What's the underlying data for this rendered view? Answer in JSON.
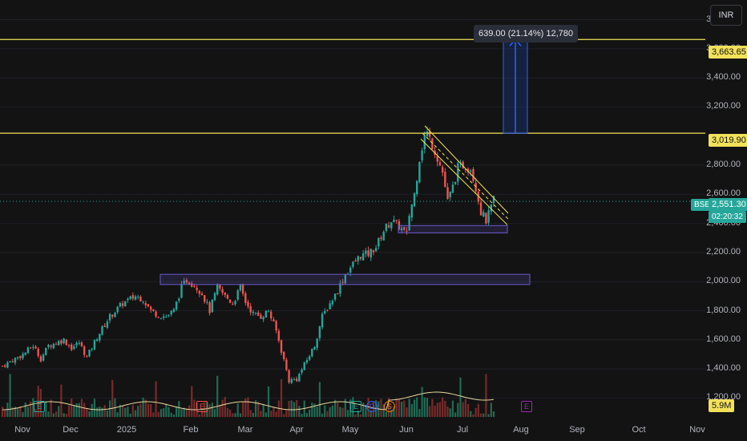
{
  "currency": "INR",
  "exchange_badge": "BSE",
  "price_badge": "2,551.30",
  "countdown": "02:20:32",
  "measure_label": "639.00 (21.14%) 12,780",
  "level_labels": [
    "3,663.65",
    "3,019.90"
  ],
  "volume_label": "5.9M",
  "events": [
    {
      "label": "E",
      "color": "#26a69a"
    },
    {
      "label": "E",
      "color": "#ef5350"
    },
    {
      "label": "E",
      "color": "#26a69a"
    },
    {
      "label": "D",
      "color": "#2962ff"
    },
    {
      "label": "S",
      "color": "#f57c00"
    },
    {
      "label": "E",
      "color": "#9c27b0"
    }
  ],
  "colors": {
    "up": "#26a69a",
    "down": "#ef5350",
    "level": "#f2e15a",
    "zone": "#6a5acd",
    "measure": "#2962ff"
  },
  "chart_data": {
    "type": "candlestick",
    "y_ticks": [
      "3,800.00",
      "3,600.00",
      "3,400.00",
      "3,200.00",
      "2,800.00",
      "2,600.00",
      "2,400.00",
      "2,200.00",
      "2,000.00",
      "1,800.00",
      "1,600.00",
      "1,400.00",
      "1,200.00"
    ],
    "ylim": [
      1070,
      3880
    ],
    "x_ticks": [
      "Nov",
      "Dec",
      "2025",
      "Feb",
      "Mar",
      "Apr",
      "May",
      "Jun",
      "Jul",
      "Aug",
      "Sep",
      "Oct",
      "Nov"
    ],
    "price_path": [
      [
        0,
        1420
      ],
      [
        8,
        1500
      ],
      [
        12,
        1560
      ],
      [
        15,
        1470
      ],
      [
        18,
        1560
      ],
      [
        24,
        1600
      ],
      [
        27,
        1545
      ],
      [
        30,
        1580
      ],
      [
        33,
        1480
      ],
      [
        37,
        1620
      ],
      [
        42,
        1760
      ],
      [
        47,
        1850
      ],
      [
        52,
        1900
      ],
      [
        55,
        1880
      ],
      [
        58,
        1800
      ],
      [
        61,
        1770
      ],
      [
        64,
        1760
      ],
      [
        67,
        1800
      ],
      [
        70,
        1960
      ],
      [
        72,
        2010
      ],
      [
        75,
        1980
      ],
      [
        78,
        1920
      ],
      [
        81,
        1800
      ],
      [
        84,
        1960
      ],
      [
        87,
        1900
      ],
      [
        90,
        1850
      ],
      [
        93,
        1960
      ],
      [
        95,
        1860
      ],
      [
        98,
        1780
      ],
      [
        101,
        1760
      ],
      [
        104,
        1800
      ],
      [
        107,
        1660
      ],
      [
        110,
        1460
      ],
      [
        112,
        1320
      ],
      [
        115,
        1330
      ],
      [
        118,
        1430
      ],
      [
        122,
        1560
      ],
      [
        125,
        1760
      ],
      [
        128,
        1850
      ],
      [
        131,
        1940
      ],
      [
        134,
        2050
      ],
      [
        137,
        2120
      ],
      [
        140,
        2180
      ],
      [
        143,
        2190
      ],
      [
        146,
        2240
      ],
      [
        149,
        2350
      ],
      [
        152,
        2420
      ],
      [
        155,
        2380
      ],
      [
        158,
        2320
      ],
      [
        159,
        2460
      ],
      [
        161,
        2600
      ],
      [
        163,
        2850
      ],
      [
        165,
        3000
      ],
      [
        166,
        3020
      ],
      [
        169,
        2900
      ],
      [
        172,
        2750
      ],
      [
        174,
        2550
      ],
      [
        176,
        2650
      ],
      [
        178,
        2780
      ],
      [
        180,
        2800
      ],
      [
        183,
        2780
      ],
      [
        185,
        2650
      ],
      [
        187,
        2480
      ],
      [
        189,
        2420
      ],
      [
        190,
        2460
      ],
      [
        192,
        2560
      ]
    ],
    "volume_avg": "5.9M"
  }
}
